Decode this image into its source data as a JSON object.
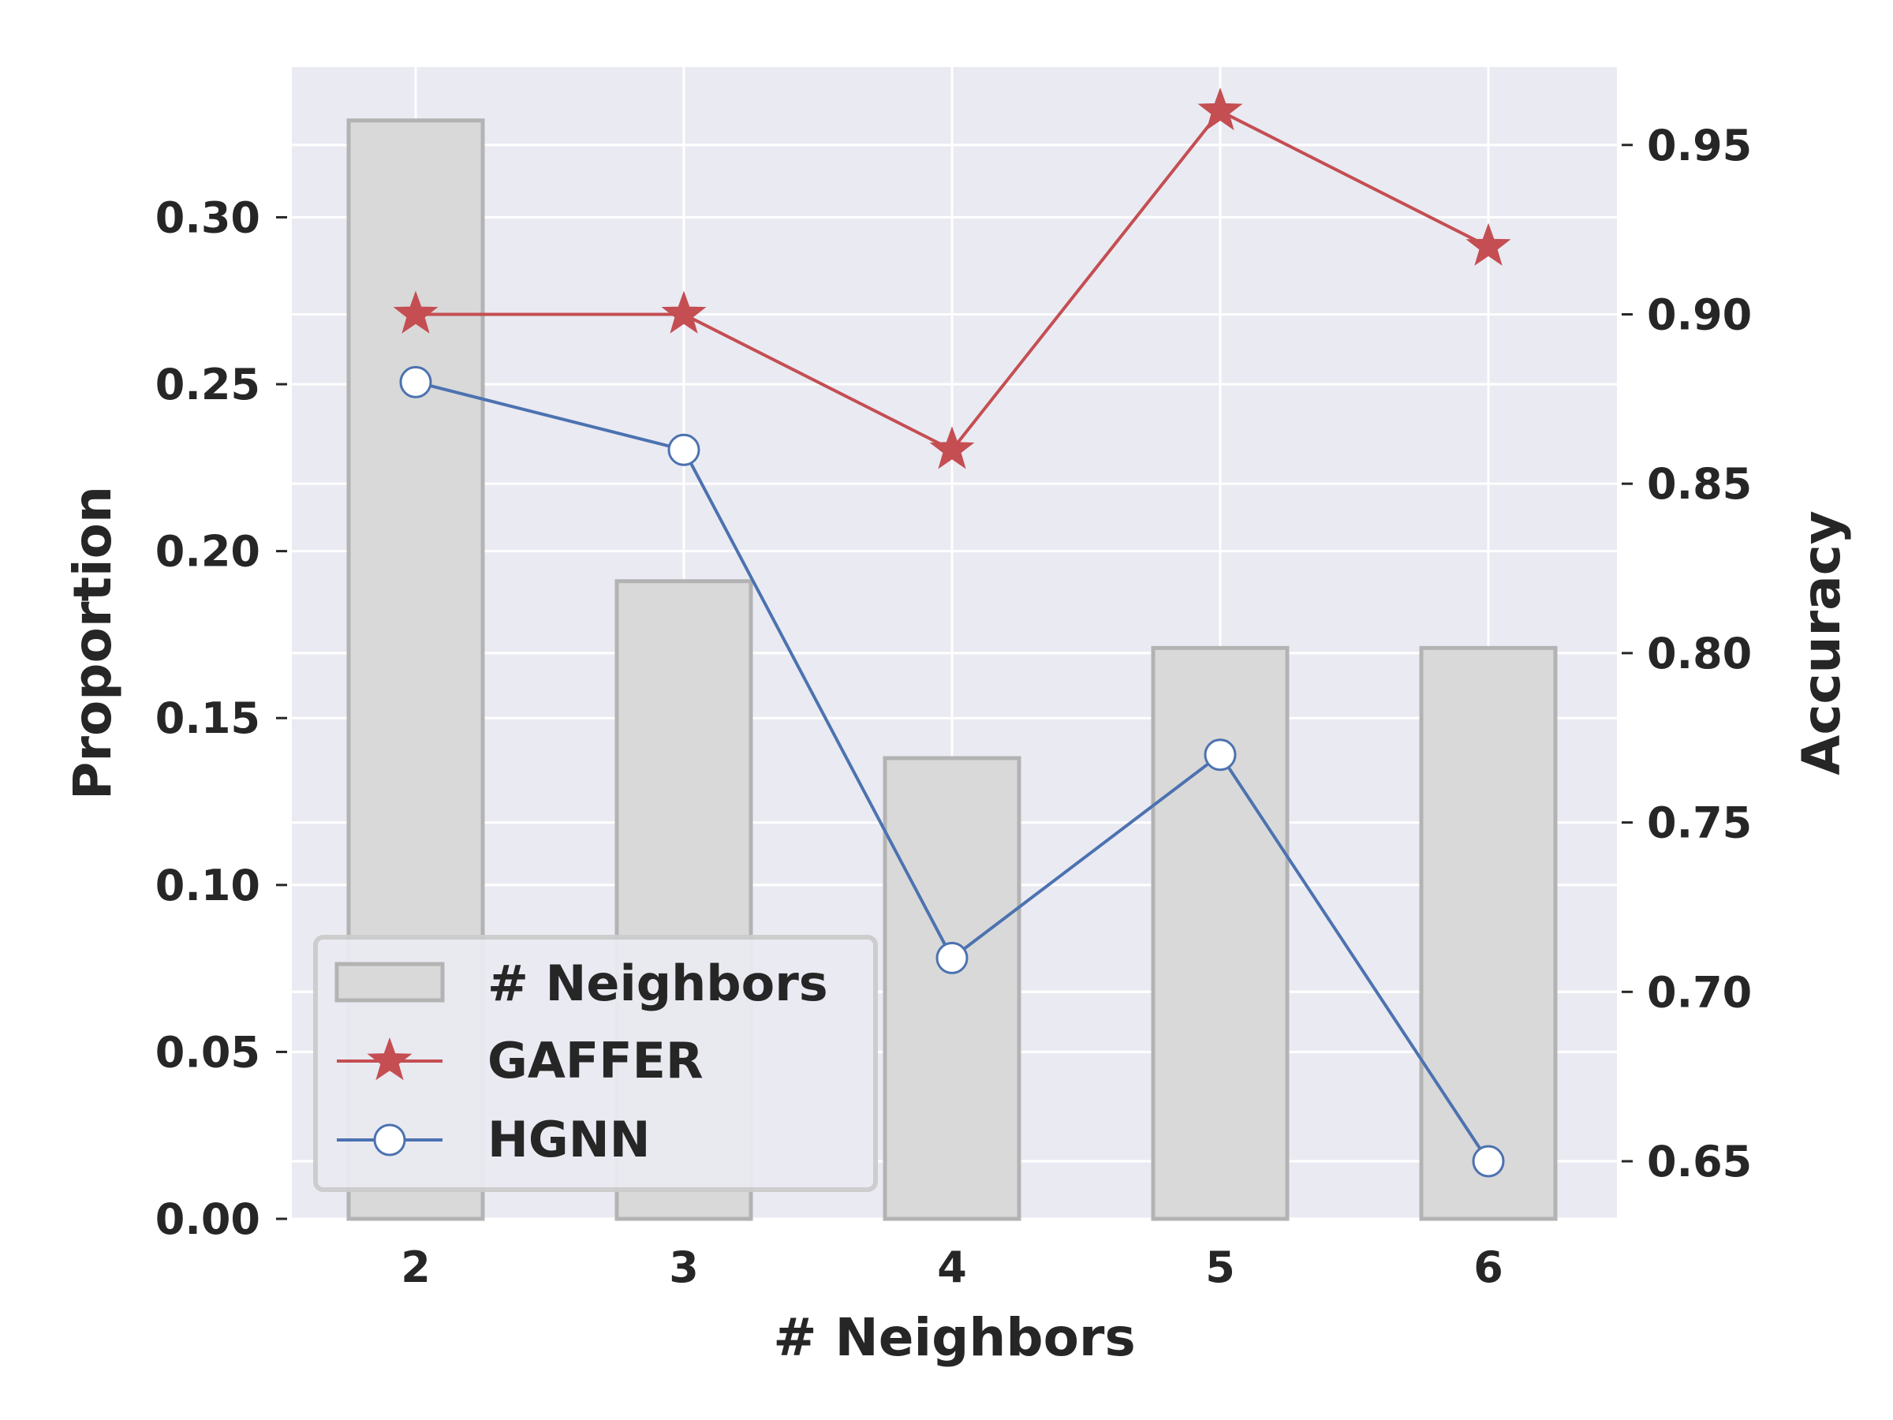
{
  "chart_data": {
    "type": "bar",
    "title": "",
    "xlabel": "# Neighbors",
    "ylabel_left": "Proportion",
    "ylabel_right": "Accuracy",
    "categories": [
      "2",
      "3",
      "4",
      "5",
      "6"
    ],
    "ylim_left": [
      0,
      0.345
    ],
    "ylim_right": [
      0.633,
      0.973
    ],
    "yticks_left": [
      "0.00",
      "0.05",
      "0.10",
      "0.15",
      "0.20",
      "0.25",
      "0.30"
    ],
    "yticks_right": [
      "0.65",
      "0.70",
      "0.75",
      "0.80",
      "0.85",
      "0.90",
      "0.95"
    ],
    "grid": true,
    "legend_position": "lower-left",
    "bars": {
      "name": "# Neighbors",
      "axis": "left",
      "values": [
        0.329,
        0.191,
        0.138,
        0.171,
        0.171
      ],
      "color": "#d9d9d9",
      "edge_color": "#b3b3b3"
    },
    "series": [
      {
        "name": "GAFFER",
        "axis": "right",
        "marker": "star",
        "values": [
          0.9,
          0.9,
          0.86,
          0.96,
          0.92
        ],
        "color": "#c44e52"
      },
      {
        "name": "HGNN",
        "axis": "right",
        "marker": "circle",
        "values": [
          0.88,
          0.86,
          0.71,
          0.77,
          0.65
        ],
        "color": "#4c72b0"
      }
    ]
  },
  "colors": {
    "plot_background": "#eaeaf2",
    "grid": "#ffffff",
    "text": "#262626"
  }
}
